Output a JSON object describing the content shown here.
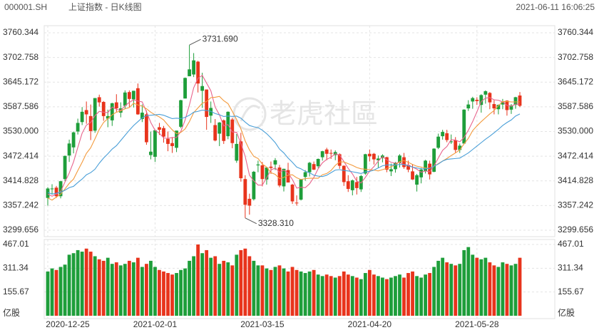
{
  "header": {
    "symbol": "000001.SH",
    "name": "上证指数 - 日K线图",
    "timestamp": "2021-06-11 16:06:25"
  },
  "watermark": "老虎社區",
  "chart_data": {
    "type": "candlestick",
    "categories": [
      "2020-12-25",
      null,
      null,
      null,
      null,
      null,
      null,
      null,
      null,
      null,
      null,
      null,
      null,
      null,
      null,
      null,
      null,
      null,
      null,
      null,
      null,
      null,
      null,
      null,
      null,
      "2021-02-01",
      null,
      null,
      null,
      null,
      null,
      null,
      null,
      null,
      null,
      null,
      null,
      null,
      null,
      null,
      null,
      null,
      null,
      null,
      null,
      null,
      null,
      null,
      null,
      null,
      "2021-03-15",
      null,
      null,
      null,
      null,
      null,
      null,
      null,
      null,
      null,
      null,
      null,
      null,
      null,
      null,
      null,
      null,
      null,
      null,
      null,
      null,
      null,
      null,
      null,
      null,
      "2021-04-20",
      null,
      null,
      null,
      null,
      null,
      null,
      null,
      null,
      null,
      null,
      null,
      null,
      null,
      null,
      null,
      null,
      null,
      null,
      null,
      null,
      null,
      null,
      null,
      null,
      "2021-05-28",
      null,
      null,
      null,
      null,
      null,
      null,
      null,
      null,
      null,
      null
    ],
    "open": [
      3375,
      3396,
      3399,
      3379,
      3419,
      3474,
      3493,
      3530,
      3552,
      3580,
      3566,
      3532,
      3610,
      3599,
      3560,
      3556,
      3598,
      3574,
      3590,
      3622,
      3605,
      3631,
      3559,
      3570,
      3475,
      3471,
      3540,
      3538,
      3513,
      3503,
      3492,
      3541,
      3607,
      3659,
      3663,
      3693,
      3625,
      3628,
      3567,
      3545,
      3525,
      3556,
      3519,
      3558,
      3462,
      3507,
      3419,
      3373,
      3372,
      3451,
      3451,
      3418,
      3448,
      3453,
      3446,
      3402,
      3440,
      3406,
      3364,
      3371,
      3424,
      3435,
      3454,
      3449,
      3470,
      3488,
      3480,
      3475,
      3477,
      3450,
      3414,
      3393,
      3412,
      3395,
      3432,
      3478,
      3478,
      3463,
      3468,
      3470,
      3437,
      3442,
      3457,
      3470,
      3452,
      3437,
      3406,
      3423,
      3438,
      3455,
      3436,
      3492,
      3519,
      3526,
      3505,
      3510,
      3487,
      3502,
      3584,
      3600,
      3604,
      3592,
      3616,
      3620,
      3594,
      3582,
      3593,
      3602,
      3581,
      3592,
      3614
    ],
    "high": [
      3400,
      3407,
      3403,
      3415,
      3474,
      3511,
      3530,
      3560,
      3587,
      3600,
      3593,
      3608,
      3616,
      3601,
      3581,
      3597,
      3617,
      3598,
      3626,
      3626,
      3625,
      3642,
      3593,
      3579,
      3530,
      3533,
      3550,
      3543,
      3530,
      3517,
      3532,
      3604,
      3656,
      3731.69,
      3713,
      3695,
      3667,
      3628,
      3600,
      3559,
      3552,
      3558,
      3577,
      3562,
      3524,
      3527,
      3428,
      3385,
      3438,
      3462,
      3459,
      3446,
      3460,
      3468,
      3452,
      3443,
      3457,
      3408,
      3381,
      3418,
      3440,
      3459,
      3460,
      3467,
      3485,
      3492,
      3488,
      3486,
      3479,
      3451,
      3428,
      3418,
      3424,
      3429,
      3478,
      3488,
      3480,
      3474,
      3477,
      3471,
      3455,
      3459,
      3477,
      3480,
      3462,
      3454,
      3431,
      3445,
      3464,
      3462,
      3491,
      3525,
      3534,
      3534,
      3523,
      3517,
      3502,
      3582,
      3603,
      3611,
      3610,
      3617,
      3626,
      3622,
      3603,
      3593,
      3606,
      3603,
      3594,
      3611,
      3622
    ],
    "low": [
      3357,
      3383,
      3375,
      3374,
      3414,
      3459,
      3479,
      3523,
      3545,
      3548,
      3510,
      3527,
      3588,
      3555,
      3540,
      3543,
      3576,
      3563,
      3583,
      3587,
      3586,
      3569,
      3552,
      3499,
      3465,
      3459,
      3522,
      3504,
      3484,
      3480,
      3482,
      3538,
      3607,
      3659,
      3657,
      3621,
      3585,
      3534,
      3550,
      3507,
      3496,
      3501,
      3512,
      3491,
      3457,
      3413,
      3328.31,
      3336,
      3369,
      3435,
      3402,
      3406,
      3431,
      3440,
      3400,
      3390,
      3411,
      3361,
      3357,
      3369,
      3415,
      3425,
      3440,
      3445,
      3462,
      3463,
      3466,
      3463,
      3443,
      3403,
      3389,
      3381,
      3383,
      3389,
      3429,
      3460,
      3453,
      3446,
      3458,
      3435,
      3426,
      3434,
      3446,
      3443,
      3435,
      3417,
      3390,
      3409,
      3432,
      3418,
      3435,
      3489,
      3511,
      3505,
      3501,
      3481,
      3480,
      3502,
      3578,
      3583,
      3592,
      3574,
      3595,
      3582,
      3570,
      3570,
      3582,
      3567,
      3571,
      3583,
      3587
    ],
    "close": [
      3397,
      3397,
      3379,
      3414,
      3473,
      3502,
      3528,
      3550,
      3576,
      3570,
      3531,
      3608,
      3598,
      3566,
      3566,
      3596,
      3584,
      3584,
      3621,
      3606,
      3625,
      3570,
      3574,
      3505,
      3483,
      3533,
      3534,
      3518,
      3501,
      3496,
      3532,
      3603,
      3655,
      3675,
      3696,
      3642,
      3636,
      3564,
      3585,
      3509,
      3551,
      3508,
      3576,
      3503,
      3501,
      3421,
      3359,
      3357,
      3436,
      3453,
      3419,
      3446,
      3445,
      3463,
      3404,
      3443,
      3411,
      3367,
      3363,
      3418,
      3435,
      3457,
      3441,
      3466,
      3484,
      3478,
      3479,
      3482,
      3450,
      3412,
      3396,
      3416,
      3398,
      3426,
      3477,
      3472,
      3465,
      3467,
      3474,
      3441,
      3442,
      3457,
      3474,
      3447,
      3441,
      3418,
      3428,
      3441,
      3462,
      3430,
      3490,
      3518,
      3529,
      3510,
      3507,
      3487,
      3497,
      3581,
      3593,
      3608,
      3601,
      3615,
      3624,
      3598,
      3584,
      3592,
      3599,
      3580,
      3591,
      3610,
      3590
    ],
    "up_color": "#1e9e3a",
    "down_color": "#e8341c",
    "moving_averages": [
      {
        "color": "#e8638c",
        "values": [
          3384,
          3379,
          3384,
          3390,
          3412,
          3433,
          3459,
          3493,
          3526,
          3545,
          3551,
          3567,
          3577,
          3575,
          3574,
          3587,
          3582,
          3579,
          3590,
          3598,
          3604,
          3601,
          3599,
          3576,
          3551,
          3533,
          3526,
          3515,
          3514,
          3516,
          3516,
          3530,
          3557,
          3592,
          3632,
          3654,
          3661,
          3643,
          3625,
          3587,
          3569,
          3543,
          3546,
          3529,
          3528,
          3502,
          3472,
          3428,
          3415,
          3405,
          3405,
          3422,
          3440,
          3445,
          3435,
          3440,
          3433,
          3418,
          3398,
          3400,
          3399,
          3408,
          3423,
          3443,
          3457,
          3465,
          3470,
          3478,
          3475,
          3460,
          3444,
          3431,
          3414,
          3410,
          3423,
          3438,
          3448,
          3461,
          3471,
          3464,
          3458,
          3456,
          3458,
          3452,
          3452,
          3447,
          3442,
          3435,
          3438,
          3436,
          3450,
          3468,
          3486,
          3495,
          3511,
          3510,
          3506,
          3516,
          3533,
          3553,
          3576,
          3600,
          3608,
          3609,
          3604,
          3603,
          3599,
          3591,
          3589,
          3594,
          3594
        ]
      },
      {
        "color": "#f39a3c",
        "values": [
          3375,
          3370,
          3377,
          3384,
          3396,
          3409,
          3419,
          3439,
          3458,
          3479,
          3492,
          3513,
          3535,
          3551,
          3560,
          3569,
          3575,
          3578,
          3583,
          3586,
          3596,
          3592,
          3589,
          3583,
          3575,
          3569,
          3564,
          3557,
          3545,
          3534,
          3525,
          3528,
          3536,
          3553,
          3574,
          3585,
          3596,
          3600,
          3609,
          3610,
          3612,
          3602,
          3595,
          3577,
          3558,
          3536,
          3508,
          3487,
          3472,
          3467,
          3454,
          3447,
          3434,
          3430,
          3420,
          3423,
          3428,
          3429,
          3422,
          3418,
          3420,
          3421,
          3421,
          3421,
          3429,
          3432,
          3439,
          3451,
          3459,
          3459,
          3455,
          3451,
          3446,
          3443,
          3442,
          3441,
          3440,
          3438,
          3441,
          3444,
          3448,
          3452,
          3460,
          3462,
          3458,
          3453,
          3449,
          3447,
          3445,
          3444,
          3449,
          3455,
          3461,
          3467,
          3474,
          3480,
          3487,
          3501,
          3514,
          3532,
          3543,
          3553,
          3562,
          3571,
          3579,
          3590,
          3600,
          3600,
          3599,
          3599,
          3599
        ]
      },
      {
        "color": "#4a9fd8",
        "values": [
          3388,
          3384,
          3386,
          3388,
          3393,
          3399,
          3402,
          3411,
          3419,
          3429,
          3434,
          3442,
          3456,
          3468,
          3478,
          3489,
          3497,
          3509,
          3521,
          3533,
          3544,
          3553,
          3562,
          3567,
          3568,
          3569,
          3570,
          3568,
          3564,
          3560,
          3561,
          3560,
          3563,
          3568,
          3575,
          3577,
          3580,
          3579,
          3577,
          3572,
          3569,
          3565,
          3566,
          3565,
          3566,
          3561,
          3552,
          3544,
          3541,
          3539,
          3533,
          3525,
          3515,
          3504,
          3489,
          3480,
          3468,
          3458,
          3447,
          3443,
          3437,
          3434,
          3428,
          3426,
          3425,
          3428,
          3434,
          3440,
          3441,
          3439,
          3438,
          3436,
          3434,
          3432,
          3436,
          3437,
          3440,
          3445,
          3450,
          3452,
          3452,
          3452,
          3453,
          3453,
          3450,
          3447,
          3445,
          3443,
          3443,
          3444,
          3449,
          3454,
          3461,
          3465,
          3466,
          3467,
          3468,
          3474,
          3480,
          3488,
          3496,
          3504,
          3512,
          3519,
          3527,
          3535,
          3544,
          3551,
          3557,
          3566,
          3571
        ]
      }
    ],
    "ylim": [
      3299.656,
      3760.344
    ],
    "yticks": [
      3299.656,
      3357.242,
      3414.828,
      3472.414,
      {
        "value": 3530,
        "label": "3530.000"
      },
      3587.586,
      3645.172,
      3702.758,
      3760.344
    ],
    "grid": true,
    "max_label": "3731.690",
    "min_label": "3328.310",
    "volume": {
      "unit": "亿股",
      "values": [
        290,
        310,
        300,
        320,
        335,
        400,
        410,
        430,
        420,
        440,
        420,
        390,
        370,
        360,
        380,
        340,
        350,
        330,
        340,
        360,
        350,
        380,
        320,
        340,
        360,
        320,
        300,
        290,
        280,
        270,
        280,
        300,
        310,
        360,
        390,
        467.01,
        410,
        430,
        380,
        390,
        340,
        360,
        350,
        330,
        400,
        430,
        440,
        390,
        360,
        330,
        330,
        310,
        300,
        320,
        330,
        310,
        290,
        320,
        300,
        290,
        280,
        290,
        300,
        270,
        260,
        270,
        260,
        250,
        260,
        290,
        270,
        260,
        250,
        240,
        280,
        300,
        270,
        260,
        250,
        240,
        250,
        260,
        270,
        250,
        280,
        290,
        260,
        250,
        270,
        280,
        320,
        360,
        380,
        350,
        340,
        330,
        340,
        430,
        450,
        400,
        380,
        370,
        380,
        350,
        330,
        320,
        350,
        340,
        330,
        340,
        380
      ],
      "ylim": [
        0,
        467.01
      ],
      "yticks": [
        155.67,
        311.34,
        467.01
      ]
    }
  }
}
